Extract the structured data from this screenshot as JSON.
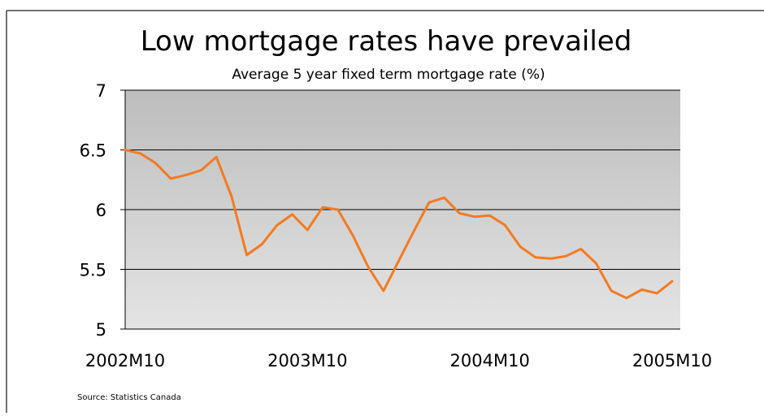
{
  "chart_data": {
    "type": "line",
    "title": "Low mortgage rates have prevailed",
    "subtitle": "Average 5 year fixed term mortgage rate (%)",
    "source": "Source: Statistics Canada",
    "ylim": [
      5,
      7
    ],
    "yticks": [
      5,
      5.5,
      6,
      6.5,
      7
    ],
    "ytick_labels": [
      "5",
      "5.5",
      "6",
      "6.5",
      "7"
    ],
    "xticks": [
      {
        "index": 0,
        "label": "2002M10"
      },
      {
        "index": 12,
        "label": "2003M10"
      },
      {
        "index": 24,
        "label": "2004M10"
      },
      {
        "index": 36,
        "label": "2005M10"
      }
    ],
    "grid": true,
    "line_color": "#f47a20",
    "x": [
      "2002M10",
      "2002M11",
      "2002M12",
      "2003M01",
      "2003M02",
      "2003M03",
      "2003M04",
      "2003M05",
      "2003M06",
      "2003M07",
      "2003M08",
      "2003M09",
      "2003M10",
      "2003M11",
      "2003M12",
      "2004M01",
      "2004M02",
      "2004M03",
      "2004M04",
      "2004M05",
      "2004M06",
      "2004M07",
      "2004M08",
      "2004M09",
      "2004M10",
      "2004M11",
      "2004M12",
      "2005M01",
      "2005M02",
      "2005M03",
      "2005M04",
      "2005M05",
      "2005M06",
      "2005M07",
      "2005M08",
      "2005M09",
      "2005M10"
    ],
    "series": [
      {
        "values": [
          6.5,
          6.47,
          6.39,
          6.26,
          6.29,
          6.33,
          6.44,
          6.11,
          5.62,
          5.71,
          5.87,
          5.96,
          5.83,
          6.02,
          6.0,
          5.78,
          5.52,
          5.32,
          5.57,
          5.82,
          6.06,
          6.1,
          5.97,
          5.94,
          5.95,
          5.87,
          5.69,
          5.6,
          5.59,
          5.61,
          5.67,
          5.55,
          5.32,
          5.26,
          5.33,
          5.3,
          5.4
        ]
      }
    ]
  }
}
